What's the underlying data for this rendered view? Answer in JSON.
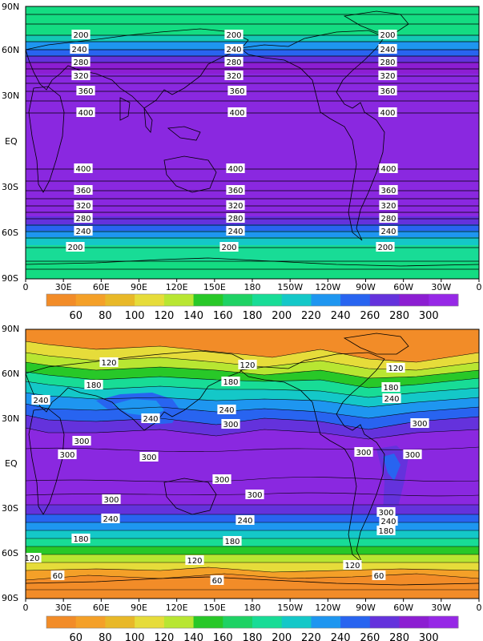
{
  "colors": {
    "bins": [
      "#f28c28",
      "#f4a028",
      "#e8b828",
      "#e6dc3a",
      "#b8e632",
      "#28c828",
      "#1ed264",
      "#18dc96",
      "#14c8c8",
      "#1e96f0",
      "#2864f0",
      "#6432dc",
      "#8c1ed2",
      "#9628e6"
    ],
    "green_band": "#14dc82",
    "teal_band": "#14c8b4"
  },
  "top_map": {
    "ylabels": [
      "90N",
      "60N",
      "30N",
      "EQ",
      "30S",
      "60S",
      "90S"
    ],
    "xlabels": [
      "0",
      "30E",
      "60E",
      "90E",
      "120E",
      "150E",
      "180",
      "150W",
      "120W",
      "90W",
      "60W",
      "30W",
      "0"
    ],
    "contour_labels": [
      "200",
      "240",
      "280",
      "320",
      "360",
      "400"
    ],
    "colorbar_labels": [
      "60",
      "80",
      "100",
      "120",
      "140",
      "160",
      "180",
      "200",
      "220",
      "240",
      "260",
      "280",
      "300"
    ]
  },
  "bottom_map": {
    "ylabels": [
      "90N",
      "60N",
      "30N",
      "EQ",
      "30S",
      "60S",
      "90S"
    ],
    "xlabels": [
      "0",
      "30E",
      "60E",
      "90E",
      "120E",
      "150E",
      "180",
      "150W",
      "120W",
      "90W",
      "60W",
      "30W",
      "0"
    ],
    "contour_labels": [
      "60",
      "120",
      "180",
      "240",
      "300"
    ],
    "colorbar_labels": [
      "60",
      "80",
      "100",
      "120",
      "140",
      "160",
      "180",
      "200",
      "220",
      "240",
      "260",
      "280",
      "300"
    ]
  }
}
